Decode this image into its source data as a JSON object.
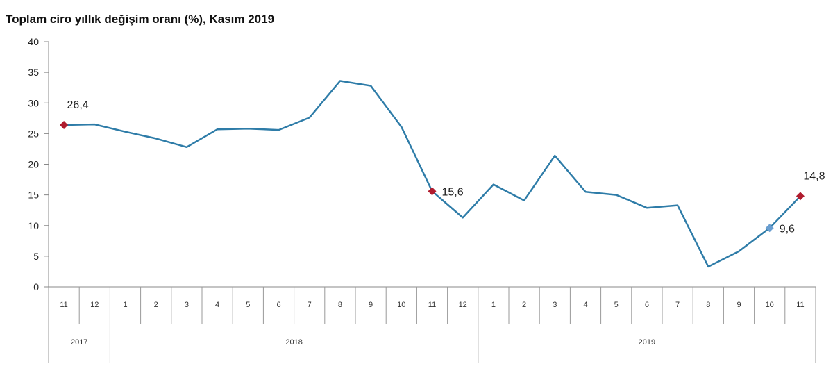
{
  "chart_data": {
    "type": "line",
    "title": "Toplam ciro yıllık değişim oranı (%), Kasım 2019",
    "xlabel": "",
    "ylabel": "",
    "ylim": [
      0,
      40
    ],
    "yticks": [
      "0",
      "5",
      "10",
      "15",
      "20",
      "25",
      "30",
      "35",
      "40"
    ],
    "grid": false,
    "categories": [
      "11",
      "12",
      "1",
      "2",
      "3",
      "4",
      "5",
      "6",
      "7",
      "8",
      "9",
      "10",
      "11",
      "12",
      "1",
      "2",
      "3",
      "4",
      "5",
      "6",
      "7",
      "8",
      "9",
      "10",
      "11"
    ],
    "years": [
      {
        "label": "2017",
        "start": 0,
        "end": 1
      },
      {
        "label": "2018",
        "start": 2,
        "end": 13
      },
      {
        "label": "2019",
        "start": 14,
        "end": 24
      }
    ],
    "series": [
      {
        "values": [
          26.4,
          26.5,
          25.3,
          24.2,
          22.8,
          25.7,
          25.8,
          25.6,
          27.6,
          33.6,
          32.8,
          26.1,
          15.6,
          11.3,
          16.7,
          14.1,
          21.4,
          15.5,
          15.0,
          12.9,
          13.3,
          3.3,
          5.8,
          9.6,
          14.8
        ],
        "color": "#2e7ca8"
      }
    ],
    "highlights": [
      {
        "index": 0,
        "label": "26,4",
        "color": "#b01c2e",
        "label_pos": "above"
      },
      {
        "index": 12,
        "label": "15,6",
        "color": "#b01c2e",
        "label_pos": "right"
      },
      {
        "index": 23,
        "label": "9,6",
        "color": "#6a9ed0",
        "label_pos": "right"
      },
      {
        "index": 24,
        "label": "14,8",
        "color": "#b01c2e",
        "label_pos": "above"
      }
    ]
  }
}
